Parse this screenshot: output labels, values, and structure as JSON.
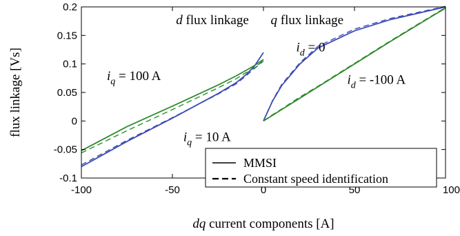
{
  "chart_data": {
    "type": "line",
    "xlabel": "dq current components [A]",
    "ylabel": "flux linkage [Vs]",
    "xlim": [
      -100,
      100
    ],
    "ylim": [
      -0.1,
      0.2
    ],
    "xticks": [
      -100,
      -50,
      0,
      50,
      100
    ],
    "xtick_labels": [
      "-100",
      "-50",
      "0",
      "50",
      "100"
    ],
    "yticks": [
      -0.1,
      -0.05,
      0,
      0.05,
      0.1,
      0.15,
      0.2
    ],
    "ytick_labels": [
      "-0.1",
      "-0.05",
      "0",
      "0.05",
      "0.1",
      "0.15",
      "0.2"
    ],
    "grid": false,
    "legend": {
      "placement": "bottom-right",
      "entries": [
        {
          "label": "MMSI",
          "style": "solid"
        },
        {
          "label": "Constant speed identification",
          "style": "dashed"
        }
      ]
    },
    "annotations": {
      "d_title": {
        "italic": "d",
        "text": " flux linkage",
        "x": -48,
        "y": 0.17
      },
      "q_title": {
        "italic": "q",
        "text": " flux linkage",
        "x": 4,
        "y": 0.17
      },
      "iq100": {
        "var": "i",
        "sub": "q",
        "text": " = 100 A",
        "x": -86,
        "y": 0.072
      },
      "iq10": {
        "var": "i",
        "sub": "q",
        "text": " = 10 A",
        "x": -44,
        "y": -0.035
      },
      "id0": {
        "var": "i",
        "sub": "d",
        "text": " = 0",
        "x": 18,
        "y": 0.122
      },
      "id100": {
        "var": "i",
        "sub": "d",
        "text": " = -100 A",
        "x": 46,
        "y": 0.065
      }
    },
    "series": [
      {
        "color": "#3b4bb5",
        "style": "solid",
        "x": [
          -100,
          -75,
          -50,
          -25,
          -15,
          -10,
          -5,
          0
        ],
        "y": [
          -0.08,
          -0.036,
          0.005,
          0.048,
          0.067,
          0.08,
          0.096,
          0.12
        ]
      },
      {
        "color": "#3b4bb5",
        "style": "dashed",
        "x": [
          -100,
          -75,
          -50,
          -25,
          -15,
          -10,
          -5,
          0
        ],
        "y": [
          -0.077,
          -0.034,
          0.006,
          0.047,
          0.065,
          0.078,
          0.092,
          0.105
        ]
      },
      {
        "color": "#2e8b2e",
        "style": "solid",
        "x": [
          -100,
          -75,
          -50,
          -25,
          -15,
          -10,
          -5,
          0
        ],
        "y": [
          -0.052,
          -0.01,
          0.026,
          0.063,
          0.079,
          0.088,
          0.097,
          0.108
        ]
      },
      {
        "color": "#2e8b2e",
        "style": "dashed",
        "x": [
          -100,
          -75,
          -50,
          -25,
          -15,
          -10,
          -5,
          0
        ],
        "y": [
          -0.056,
          -0.017,
          0.02,
          0.058,
          0.074,
          0.084,
          0.093,
          0.106
        ]
      },
      {
        "color": "#3b4bb5",
        "style": "solid",
        "x": [
          0,
          5,
          10,
          20,
          30,
          50,
          70,
          100
        ],
        "y": [
          0,
          0.035,
          0.062,
          0.1,
          0.128,
          0.158,
          0.178,
          0.2
        ]
      },
      {
        "color": "#3b4bb5",
        "style": "dashed",
        "x": [
          0,
          5,
          10,
          20,
          30,
          50,
          70,
          100
        ],
        "y": [
          0,
          0.036,
          0.064,
          0.102,
          0.131,
          0.161,
          0.18,
          0.201
        ]
      },
      {
        "color": "#2e8b2e",
        "style": "solid",
        "x": [
          0,
          5,
          10,
          20,
          30,
          50,
          70,
          100
        ],
        "y": [
          0,
          0.01,
          0.02,
          0.04,
          0.06,
          0.1,
          0.14,
          0.198
        ]
      },
      {
        "color": "#2e8b2e",
        "style": "dashed",
        "x": [
          0,
          5,
          10,
          20,
          30,
          50,
          70,
          100
        ],
        "y": [
          0,
          0.011,
          0.021,
          0.042,
          0.061,
          0.101,
          0.141,
          0.199
        ]
      }
    ]
  }
}
